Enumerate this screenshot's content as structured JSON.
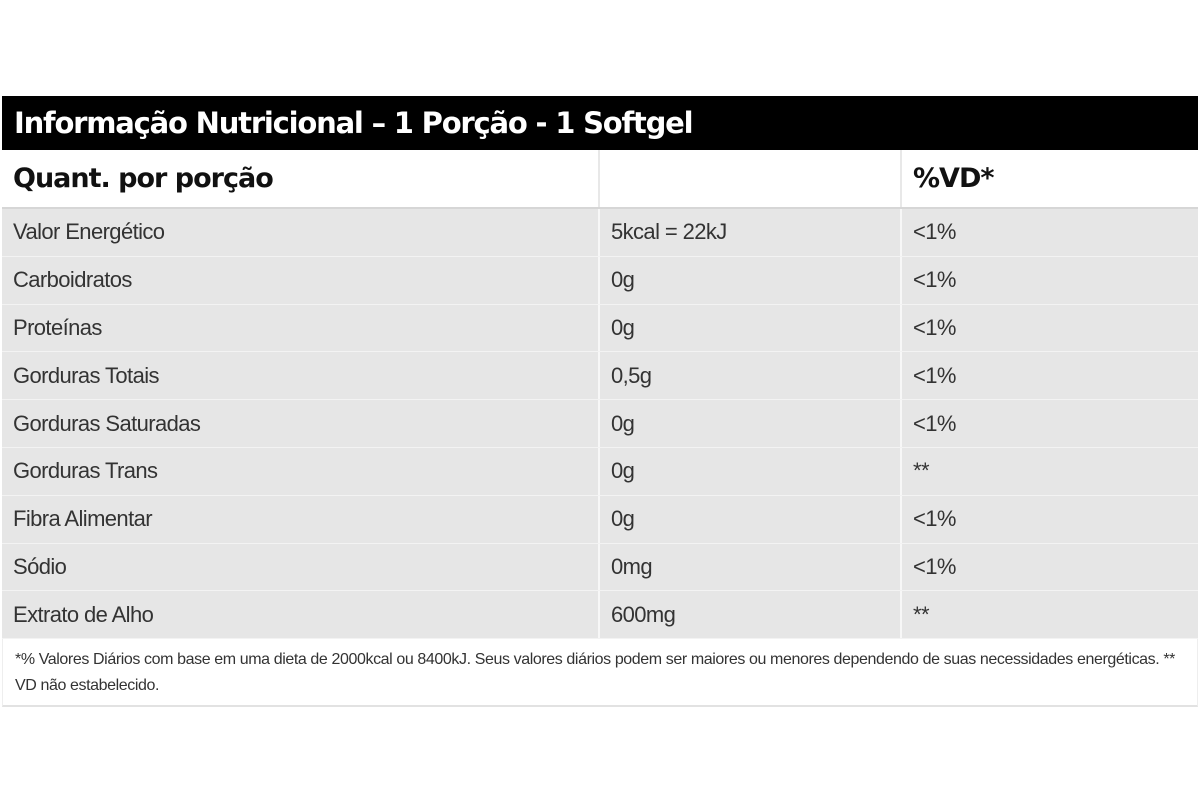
{
  "table": {
    "title": "Informação Nutricional – 1 Porção - 1 Softgel",
    "header": {
      "col1": "Quant. por porção",
      "col2": "",
      "col3": "%VD*"
    },
    "rows": [
      {
        "name": "Valor Energético",
        "amount": "5kcal = 22kJ",
        "dv": "<1%"
      },
      {
        "name": "Carboidratos",
        "amount": "0g",
        "dv": "<1%"
      },
      {
        "name": "Proteínas",
        "amount": "0g",
        "dv": "<1%"
      },
      {
        "name": "Gorduras Totais",
        "amount": "0,5g",
        "dv": "<1%"
      },
      {
        "name": "Gorduras Saturadas",
        "amount": "0g",
        "dv": "<1%"
      },
      {
        "name": "Gorduras Trans",
        "amount": "0g",
        "dv": "**"
      },
      {
        "name": "Fibra Alimentar",
        "amount": "0g",
        "dv": "<1%"
      },
      {
        "name": "Sódio",
        "amount": "0mg",
        "dv": "<1%"
      },
      {
        "name": "Extrato de Alho",
        "amount": "600mg",
        "dv": "**"
      }
    ],
    "footnote": "*% Valores Diários com base em uma dieta de 2000kcal ou 8400kJ. Seus valores diários podem ser maiores ou menores dependendo de suas necessidades energéticas. ** VD não estabelecido."
  },
  "colors": {
    "title_bg": "#000000",
    "row_bg": "#e6e6e6",
    "text": "#333333"
  }
}
